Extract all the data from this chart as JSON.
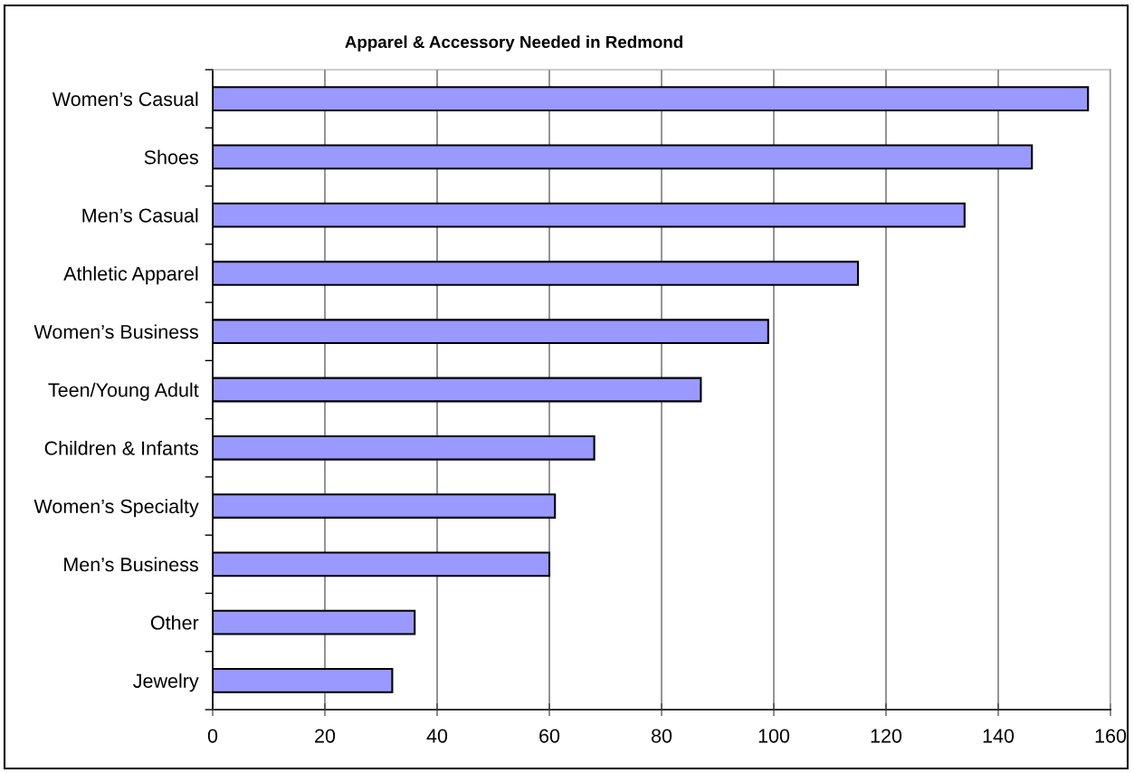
{
  "chart_data": {
    "type": "bar",
    "orientation": "horizontal",
    "title": "Apparel & Accessory Needed in Redmond",
    "categories": [
      "Women’s Casual",
      "Shoes",
      "Men’s Casual",
      "Athletic Apparel",
      "Women’s Business",
      "Teen/Young Adult",
      "Children & Infants",
      "Women’s Specialty",
      "Men’s Business",
      "Other",
      "Jewelry"
    ],
    "values": [
      156,
      146,
      134,
      115,
      99,
      87,
      68,
      61,
      60,
      36,
      32
    ],
    "color": "#9999ff",
    "xlim": [
      0,
      160
    ],
    "xticks": [
      0,
      20,
      40,
      60,
      80,
      100,
      120,
      140,
      160
    ],
    "grid": "x",
    "legend": false
  }
}
